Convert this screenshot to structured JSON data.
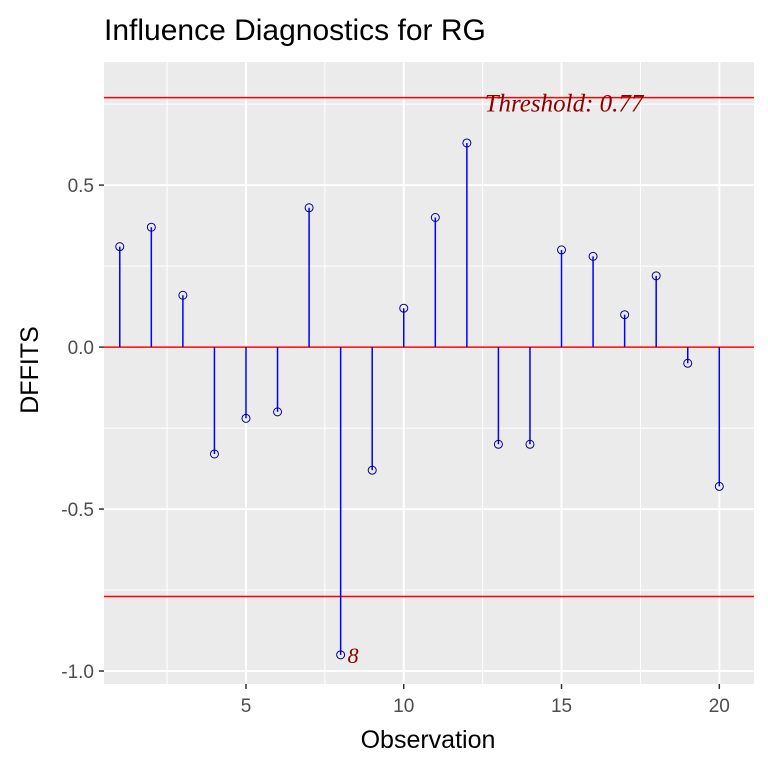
{
  "chart_data": {
    "type": "scatter",
    "title": "Influence Diagnostics for RG",
    "xlabel": "Observation",
    "ylabel": "DFFITS",
    "xlim": [
      0.5,
      21.1
    ],
    "ylim": [
      -1.04,
      0.88
    ],
    "x_ticks": [
      5,
      10,
      15,
      20
    ],
    "x_tick_labels": [
      "5",
      "10",
      "15",
      "20"
    ],
    "y_ticks": [
      -1.0,
      -0.5,
      0.0,
      0.5
    ],
    "y_tick_labels": [
      "-1.0",
      "-0.5",
      "0.0",
      "0.5"
    ],
    "grid": true,
    "threshold": 0.77,
    "threshold_label": "Threshold: 0.77",
    "x": [
      1,
      2,
      3,
      4,
      5,
      6,
      7,
      8,
      9,
      10,
      11,
      12,
      13,
      14,
      15,
      16,
      17,
      18,
      19,
      20
    ],
    "values": [
      0.31,
      0.37,
      0.16,
      -0.33,
      -0.22,
      -0.2,
      0.43,
      -0.95,
      -0.38,
      0.12,
      0.4,
      0.63,
      -0.3,
      -0.3,
      0.3,
      0.28,
      0.1,
      0.22,
      -0.05,
      -0.43
    ],
    "point_labels": [
      {
        "x": 8,
        "y": -0.95,
        "text": "8"
      }
    ],
    "colors": {
      "stem": "#0000ff",
      "point": "#00008b",
      "reference_line": "#ff0000",
      "label": "#8b0000",
      "panel": "#ebebeb",
      "grid": "#ffffff"
    }
  }
}
